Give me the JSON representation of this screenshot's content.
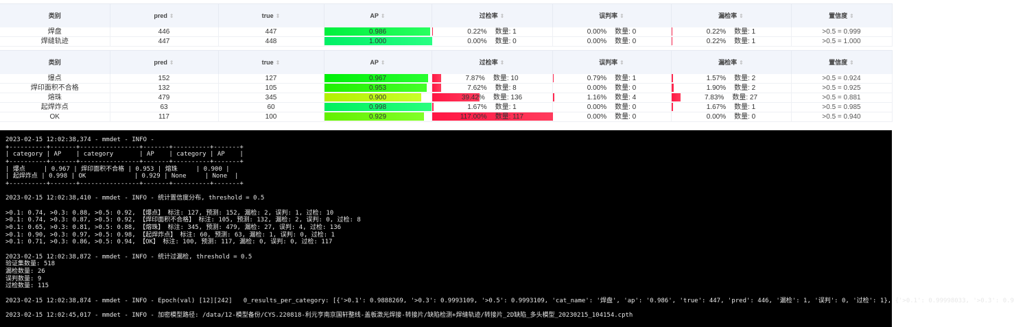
{
  "columns": [
    "类别",
    "pred",
    "true",
    "AP",
    "过检率",
    "误判率",
    "漏检率",
    "置信度"
  ],
  "count_label": "数量: ",
  "table1": [
    {
      "cat": "焊盘",
      "pred": 446,
      "true": 447,
      "ap": "0.986",
      "over": "0.22%",
      "over_n": 1,
      "mis": "0.00%",
      "mis_n": 0,
      "miss": "0.22%",
      "miss_n": 1,
      "conf": ">0.5 = 0.999"
    },
    {
      "cat": "焊缝轨迹",
      "pred": 447,
      "true": 448,
      "ap": "1.000",
      "over": "0.00%",
      "over_n": 0,
      "mis": "0.00%",
      "mis_n": 0,
      "miss": "0.22%",
      "miss_n": 1,
      "conf": ">0.5 = 1.000"
    }
  ],
  "table2": [
    {
      "cat": "爆点",
      "pred": 152,
      "true": 127,
      "ap": "0.967",
      "over": "7.87%",
      "over_n": 10,
      "mis": "0.79%",
      "mis_n": 1,
      "miss": "1.57%",
      "miss_n": 2,
      "conf": ">0.5 = 0.924"
    },
    {
      "cat": "焊印面积不合格",
      "pred": 132,
      "true": 105,
      "ap": "0.953",
      "over": "7.62%",
      "over_n": 8,
      "mis": "0.00%",
      "mis_n": 0,
      "miss": "1.90%",
      "miss_n": 2,
      "conf": ">0.5 = 0.925"
    },
    {
      "cat": "熔珠",
      "pred": 479,
      "true": 345,
      "ap": "0.900",
      "over": "39.42%",
      "over_n": 136,
      "mis": "1.16%",
      "mis_n": 4,
      "miss": "7.83%",
      "miss_n": 27,
      "conf": ">0.5 = 0.881"
    },
    {
      "cat": "起焊炸点",
      "pred": 63,
      "true": 60,
      "ap": "0.998",
      "over": "1.67%",
      "over_n": 1,
      "mis": "0.00%",
      "mis_n": 0,
      "miss": "1.67%",
      "miss_n": 1,
      "conf": ">0.5 = 0.985"
    },
    {
      "cat": "OK",
      "pred": 117,
      "true": 100,
      "ap": "0.929",
      "over": "117.00%",
      "over_n": 117,
      "mis": "0.00%",
      "mis_n": 0,
      "miss": "0.00%",
      "miss_n": 0,
      "conf": ">0.5 = 0.940"
    }
  ],
  "colors": {
    "rate_bar": "#ff1744",
    "header_bg": "#f2f5fb",
    "terminal_bg": "#000000"
  },
  "terminal_lines": [
    "2023-02-15 12:02:38,374 - mmdet - INFO -",
    "+----------+-------+----------------+-------+----------+-------+",
    "| category | AP    | category       | AP    | category | AP    |",
    "+----------+-------+----------------+-------+----------+-------+",
    "| 爆点     | 0.967 | 焊印面积不合格 | 0.953 | 熔珠     | 0.900 |",
    "| 起焊炸点 | 0.998 | OK             | 0.929 | None     | None  |",
    "+----------+-------+----------------+-------+----------+-------+",
    "",
    "2023-02-15 12:02:38,410 - mmdet - INFO - 统计置信度分布, threshold = 0.5",
    "",
    ">0.1: 0.74, >0.3: 0.88, >0.5: 0.92, 【爆点】 标注: 127, 预测: 152, 漏检: 2, 误判: 1, 过检: 10",
    ">0.1: 0.74, >0.3: 0.87, >0.5: 0.92, 【焊印面积不合格】 标注: 105, 预测: 132, 漏检: 2, 误判: 0, 过检: 8",
    ">0.1: 0.65, >0.3: 0.81, >0.5: 0.88, 【熔珠】 标注: 345, 预测: 479, 漏检: 27, 误判: 4, 过检: 136",
    ">0.1: 0.90, >0.3: 0.97, >0.5: 0.98, 【起焊炸点】 标注: 60, 预测: 63, 漏检: 1, 误判: 0, 过检: 1",
    ">0.1: 0.71, >0.3: 0.86, >0.5: 0.94, 【OK】 标注: 100, 预测: 117, 漏检: 0, 误判: 0, 过检: 117",
    "",
    "2023-02-15 12:02:38,872 - mmdet - INFO - 统计过漏检, threshold = 0.5",
    "验证集数量: 518",
    "漏检数量: 26",
    "误判数量: 9",
    "过检数量: 115",
    "",
    "2023-02-15 12:02:38,874 - mmdet - INFO - Epoch(val) [12][242]   0_results_per_category: [{'>0.1': 0.9888269, '>0.3': 0.9993109, '>0.5': 0.9993109, 'cat_name': '焊盘', 'ap': '0.986', 'true': 447, 'pred': 446, '漏检': 1, '误判': 0, '过检': 1}, {'>0.1': 0.99998033, '>0.3': 0.9",
    "",
    "2023-02-15 12:02:45,017 - mmdet - INFO - 加密模型路径: /data/12-模型备份/CYS.220818-利元亨南京国轩整线-盖板激光焊接-转接片/缺陷检测+焊缝轨迹/转接片_2D缺陷_多头模型_20230215_104154.cpth"
  ]
}
